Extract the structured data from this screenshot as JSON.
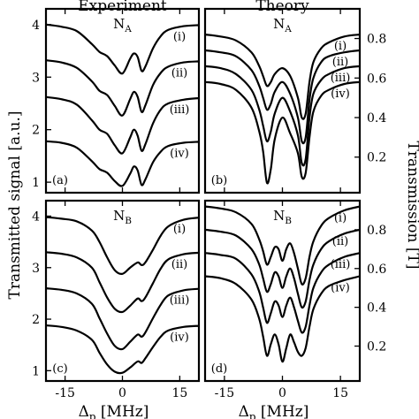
{
  "chart_data": [
    {
      "type": "line",
      "panel": "(a)",
      "title": "Experiment",
      "label": "N_A",
      "ylabel": "Transmitted signal [a.u.]",
      "ylim": [
        0.8,
        4.3
      ],
      "yticks": [
        1,
        2,
        3,
        4
      ],
      "xlim": [
        -20,
        20
      ],
      "x": [
        -20,
        -16,
        -12,
        -8,
        -6,
        -4,
        -2,
        0,
        2,
        3,
        4,
        5,
        6,
        8,
        10,
        12,
        16,
        20
      ],
      "series": [
        {
          "name": "(i)",
          "values": [
            4.0,
            3.96,
            3.88,
            3.63,
            3.48,
            3.4,
            3.22,
            3.07,
            3.35,
            3.45,
            3.38,
            3.12,
            3.2,
            3.55,
            3.78,
            3.9,
            3.97,
            3.99
          ]
        },
        {
          "name": "(ii)",
          "values": [
            3.32,
            3.28,
            3.18,
            2.92,
            2.74,
            2.66,
            2.45,
            2.27,
            2.58,
            2.72,
            2.62,
            2.34,
            2.46,
            2.85,
            3.08,
            3.2,
            3.28,
            3.3
          ]
        },
        {
          "name": "(iii)",
          "values": [
            2.62,
            2.58,
            2.48,
            2.18,
            2.0,
            1.92,
            1.7,
            1.55,
            1.85,
            2.0,
            1.88,
            1.6,
            1.72,
            2.12,
            2.38,
            2.5,
            2.57,
            2.6
          ]
        },
        {
          "name": "(iv)",
          "values": [
            1.78,
            1.75,
            1.66,
            1.4,
            1.25,
            1.18,
            1.02,
            0.93,
            1.16,
            1.3,
            1.22,
            0.95,
            1.05,
            1.38,
            1.58,
            1.69,
            1.75,
            1.77
          ]
        }
      ]
    },
    {
      "type": "line",
      "panel": "(b)",
      "title": "Theory",
      "label": "N_A",
      "ylabel": "Transmission [T]",
      "ylim": [
        0.02,
        0.95
      ],
      "yticks": [
        0.2,
        0.4,
        0.6,
        0.8
      ],
      "xlim": [
        -20,
        20
      ],
      "x": [
        -20,
        -16,
        -12,
        -8,
        -6,
        -5,
        -4,
        -3,
        -2,
        0,
        2,
        4,
        5,
        6,
        7,
        8,
        10,
        12,
        16,
        20
      ],
      "series": [
        {
          "name": "(i)",
          "values": [
            0.82,
            0.81,
            0.79,
            0.73,
            0.66,
            0.61,
            0.56,
            0.58,
            0.62,
            0.65,
            0.61,
            0.5,
            0.4,
            0.42,
            0.58,
            0.68,
            0.75,
            0.78,
            0.81,
            0.82
          ]
        },
        {
          "name": "(ii)",
          "values": [
            0.74,
            0.73,
            0.71,
            0.64,
            0.56,
            0.5,
            0.44,
            0.47,
            0.53,
            0.58,
            0.52,
            0.4,
            0.28,
            0.3,
            0.49,
            0.6,
            0.68,
            0.71,
            0.73,
            0.74
          ]
        },
        {
          "name": "(iii)",
          "values": [
            0.66,
            0.65,
            0.62,
            0.54,
            0.44,
            0.36,
            0.28,
            0.33,
            0.42,
            0.5,
            0.43,
            0.31,
            0.17,
            0.19,
            0.4,
            0.52,
            0.59,
            0.62,
            0.65,
            0.66
          ]
        },
        {
          "name": "(iv)",
          "values": [
            0.58,
            0.57,
            0.54,
            0.45,
            0.33,
            0.23,
            0.07,
            0.14,
            0.29,
            0.4,
            0.32,
            0.22,
            0.1,
            0.12,
            0.3,
            0.43,
            0.51,
            0.54,
            0.57,
            0.58
          ]
        }
      ]
    },
    {
      "type": "line",
      "panel": "(c)",
      "label": "N_B",
      "ylabel": "Transmitted signal [a.u.]",
      "xlabel": "Δp [MHz]",
      "ylim": [
        0.8,
        4.3
      ],
      "yticks": [
        1,
        2,
        3,
        4
      ],
      "xlim": [
        -20,
        20
      ],
      "xticks": [
        -15,
        0,
        15
      ],
      "x": [
        -20,
        -16,
        -12,
        -8,
        -6,
        -4,
        -2,
        0,
        2,
        4,
        5,
        6,
        8,
        10,
        12,
        16,
        20
      ],
      "series": [
        {
          "name": "(i)",
          "values": [
            3.98,
            3.95,
            3.9,
            3.72,
            3.5,
            3.2,
            2.95,
            2.88,
            3.0,
            3.1,
            3.05,
            3.1,
            3.35,
            3.62,
            3.8,
            3.93,
            3.97
          ]
        },
        {
          "name": "(ii)",
          "values": [
            3.3,
            3.27,
            3.2,
            3.0,
            2.72,
            2.42,
            2.2,
            2.14,
            2.26,
            2.4,
            2.35,
            2.42,
            2.7,
            2.98,
            3.16,
            3.26,
            3.29
          ]
        },
        {
          "name": "(iii)",
          "values": [
            2.6,
            2.57,
            2.5,
            2.3,
            2.02,
            1.72,
            1.48,
            1.42,
            1.56,
            1.7,
            1.66,
            1.74,
            2.02,
            2.28,
            2.46,
            2.56,
            2.59
          ]
        },
        {
          "name": "(iv)",
          "values": [
            1.88,
            1.85,
            1.78,
            1.6,
            1.35,
            1.12,
            0.98,
            0.96,
            1.06,
            1.18,
            1.15,
            1.24,
            1.46,
            1.66,
            1.78,
            1.85,
            1.87
          ]
        }
      ]
    },
    {
      "type": "line",
      "panel": "(d)",
      "label": "N_B",
      "ylabel": "Transmission [T]",
      "xlabel": "Δp [MHz]",
      "ylim": [
        0.02,
        0.95
      ],
      "yticks": [
        0.2,
        0.4,
        0.6,
        0.8
      ],
      "xlim": [
        -20,
        20
      ],
      "xticks": [
        -15,
        0,
        15
      ],
      "x": [
        -20,
        -16,
        -12,
        -8,
        -6,
        -5,
        -4,
        -3,
        -2,
        -1,
        0,
        1,
        2,
        3,
        4,
        5,
        6,
        7,
        8,
        10,
        12,
        16,
        20
      ],
      "series": [
        {
          "name": "(i)",
          "values": [
            0.92,
            0.91,
            0.89,
            0.83,
            0.75,
            0.69,
            0.62,
            0.66,
            0.71,
            0.7,
            0.64,
            0.7,
            0.73,
            0.68,
            0.6,
            0.52,
            0.55,
            0.66,
            0.74,
            0.82,
            0.86,
            0.9,
            0.92
          ]
        },
        {
          "name": "(ii)",
          "values": [
            0.8,
            0.79,
            0.77,
            0.7,
            0.62,
            0.55,
            0.48,
            0.52,
            0.58,
            0.56,
            0.5,
            0.56,
            0.6,
            0.55,
            0.47,
            0.4,
            0.43,
            0.54,
            0.62,
            0.7,
            0.74,
            0.78,
            0.8
          ]
        },
        {
          "name": "(iii)",
          "values": [
            0.68,
            0.67,
            0.65,
            0.57,
            0.48,
            0.4,
            0.32,
            0.37,
            0.43,
            0.41,
            0.35,
            0.41,
            0.45,
            0.4,
            0.33,
            0.27,
            0.3,
            0.41,
            0.5,
            0.58,
            0.62,
            0.66,
            0.68
          ]
        },
        {
          "name": "(iv)",
          "values": [
            0.56,
            0.55,
            0.52,
            0.44,
            0.34,
            0.25,
            0.15,
            0.21,
            0.26,
            0.21,
            0.12,
            0.19,
            0.26,
            0.22,
            0.17,
            0.15,
            0.19,
            0.3,
            0.39,
            0.47,
            0.51,
            0.54,
            0.56
          ]
        }
      ]
    }
  ]
}
